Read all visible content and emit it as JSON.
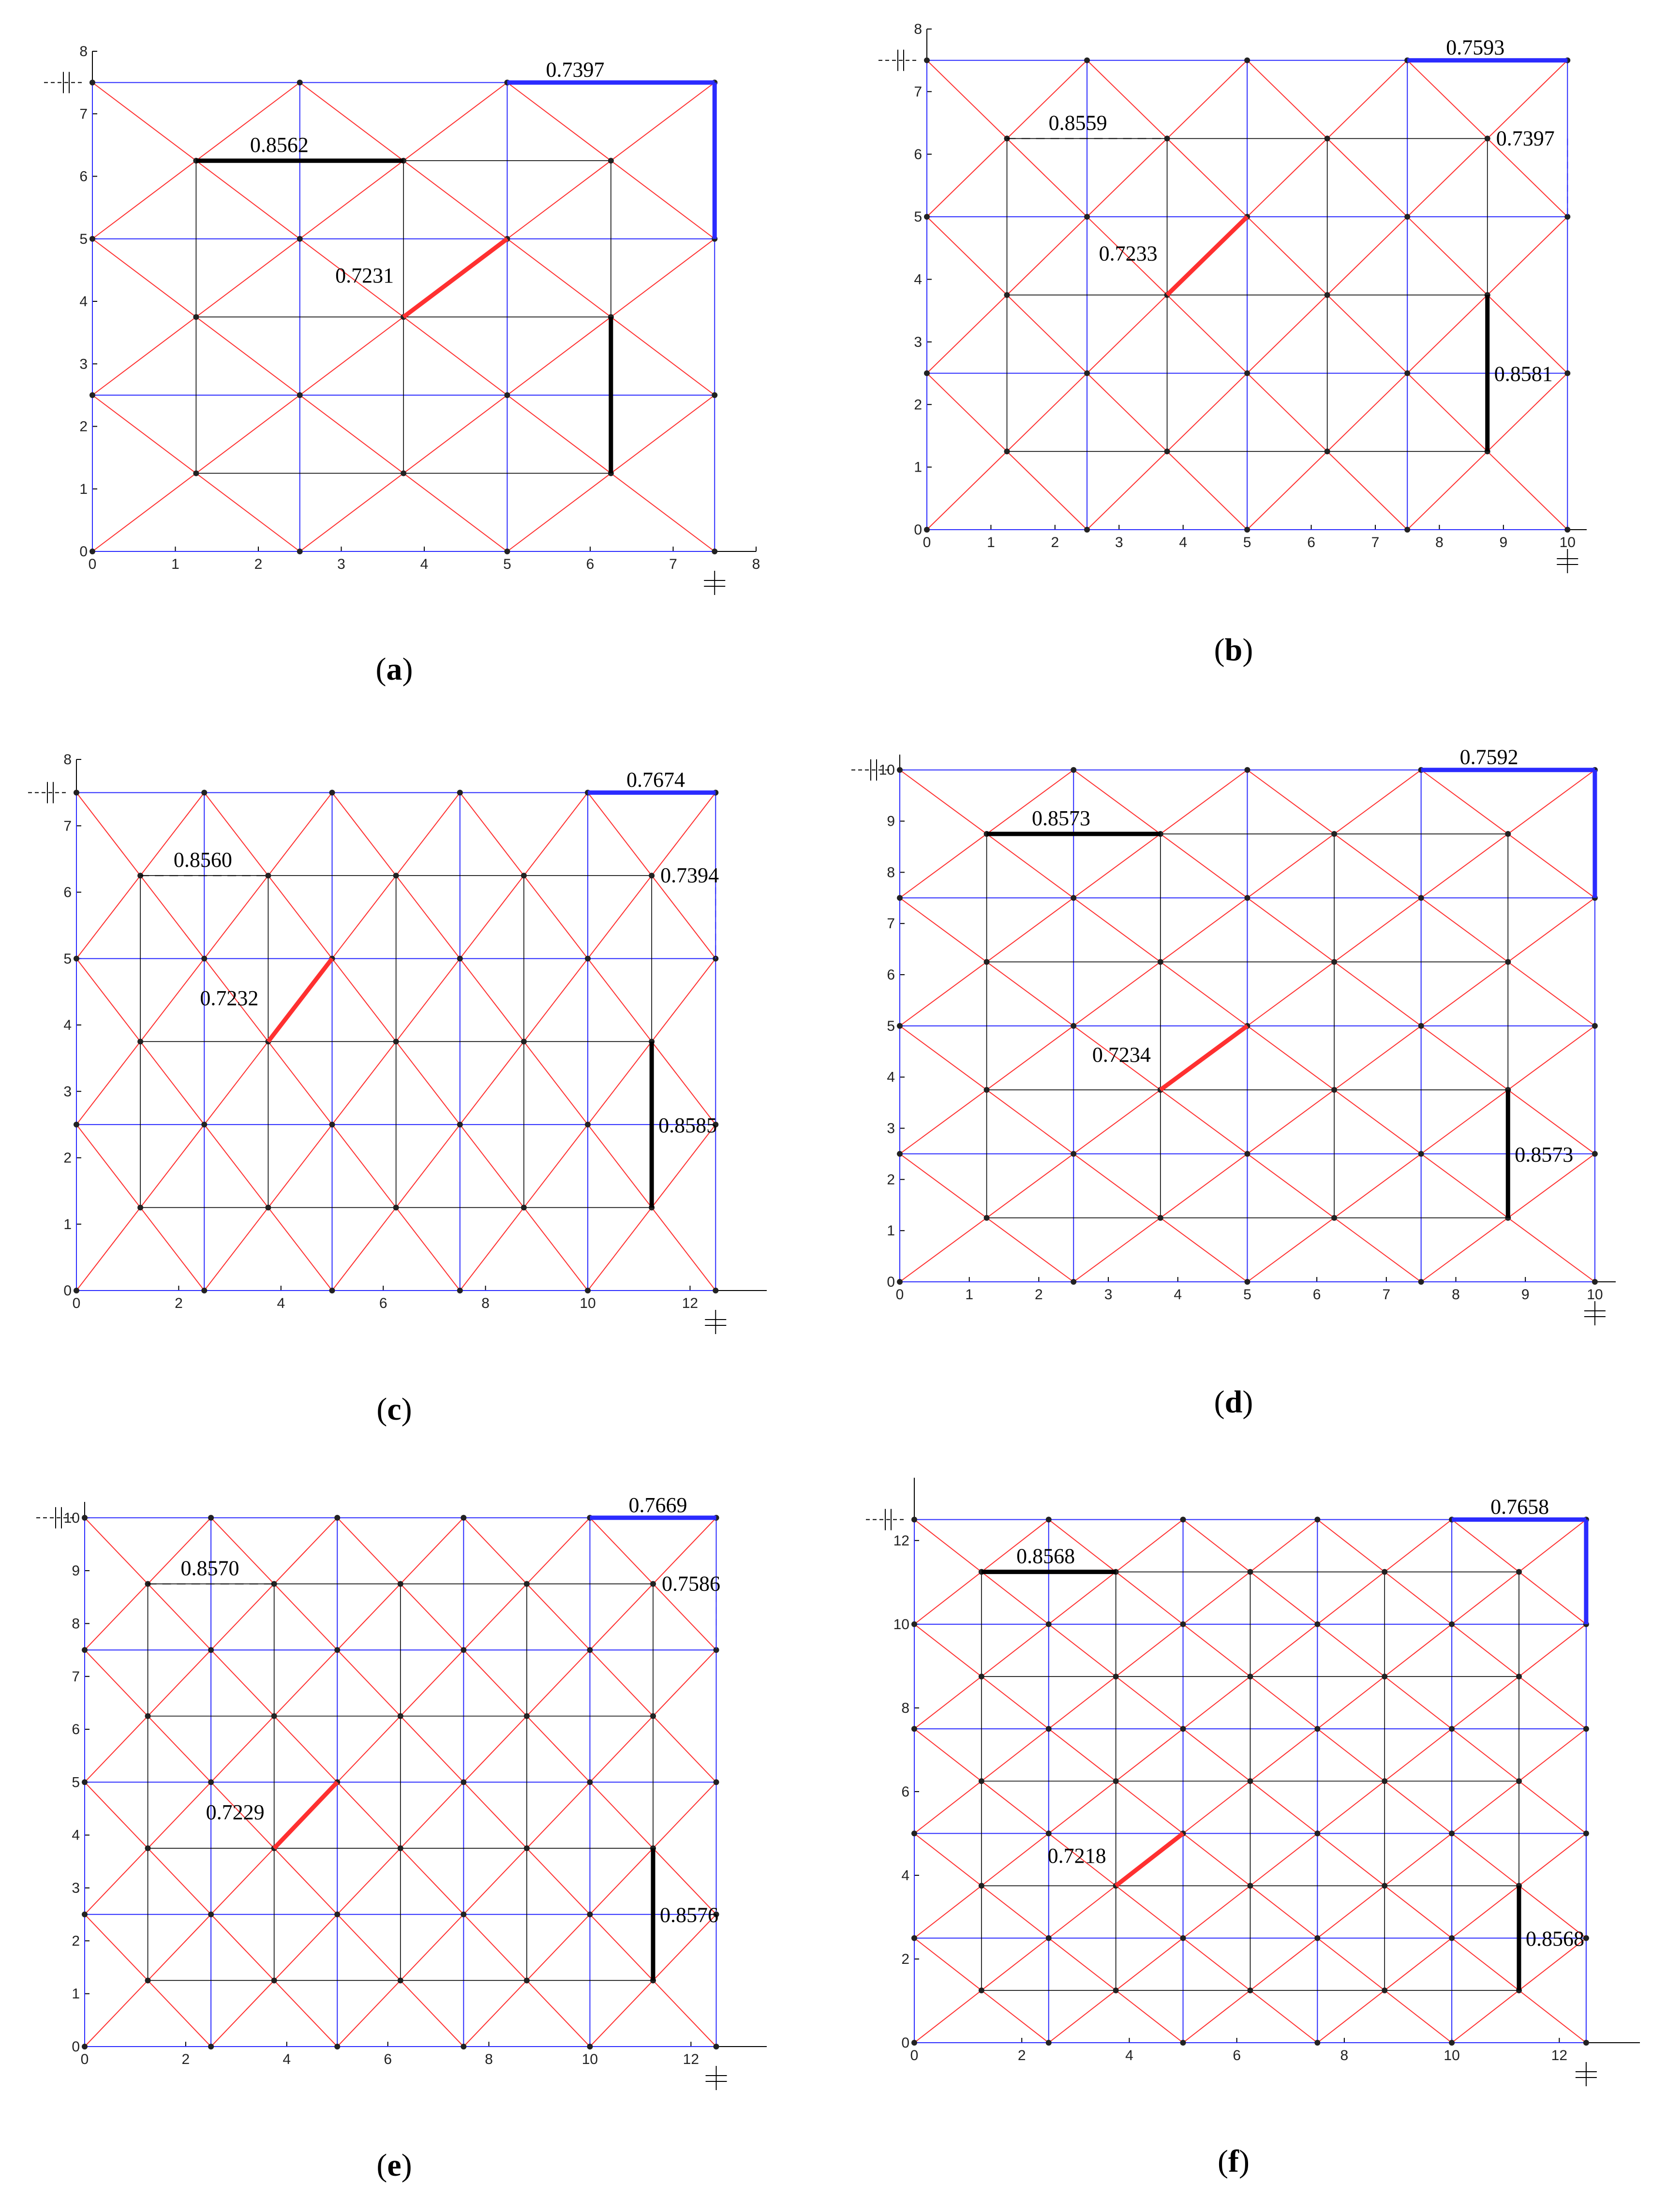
{
  "figure": {
    "panels": [
      {
        "id": "a",
        "caption": "(a)",
        "caption_letter": "a",
        "width": 7.5,
        "height": 7.5,
        "xmax": 8,
        "ymax": 8,
        "xticks": [
          "0",
          "1",
          "2",
          "3",
          "4",
          "5",
          "6",
          "7",
          "8"
        ],
        "yticks": [
          "0",
          "1",
          "2",
          "3",
          "4",
          "5",
          "6",
          "7",
          "8"
        ],
        "xtick_values": [
          0,
          1,
          2,
          3,
          4,
          5,
          6,
          7,
          8
        ],
        "ytick_values": [
          0,
          1,
          2,
          3,
          4,
          5,
          6,
          7,
          8
        ],
        "labels": {
          "blue": "0.7397",
          "black_top": "0.8562",
          "red": "0.7231",
          "black_right": ""
        },
        "dashed_top": false,
        "dashed_right": false
      },
      {
        "id": "b",
        "caption": "(b)",
        "caption_letter": "b",
        "width": 10,
        "height": 7.5,
        "xmax": 10.3,
        "ymax": 8,
        "xticks": [
          "0",
          "1",
          "2",
          "3",
          "4",
          "5",
          "6",
          "7",
          "8",
          "9",
          "10"
        ],
        "yticks": [
          "0",
          "1",
          "2",
          "3",
          "4",
          "5",
          "6",
          "7",
          "8"
        ],
        "xtick_values": [
          0,
          1,
          2,
          3,
          4,
          5,
          6,
          7,
          8,
          9,
          10
        ],
        "ytick_values": [
          0,
          1,
          2,
          3,
          4,
          5,
          6,
          7,
          8
        ],
        "labels": {
          "blue": "0.7593",
          "black_top": "0.8559",
          "red": "0.7233",
          "black_right": "0.8581",
          "dashed_right_label": "0.7397"
        },
        "dashed_top": true,
        "dashed_right": true
      },
      {
        "id": "c",
        "caption": "(c)",
        "caption_letter": "c",
        "width": 12.5,
        "height": 7.5,
        "xmax": 13.5,
        "ymax": 8,
        "xticks": [
          "0",
          "2",
          "4",
          "6",
          "8",
          "10",
          "12"
        ],
        "yticks": [
          "0",
          "1",
          "2",
          "3",
          "4",
          "5",
          "6",
          "7",
          "8"
        ],
        "xtick_values": [
          0,
          2,
          4,
          6,
          8,
          10,
          12
        ],
        "ytick_values": [
          0,
          1,
          2,
          3,
          4,
          5,
          6,
          7,
          8
        ],
        "labels": {
          "blue": "0.7674",
          "black_top": "0.8560",
          "red": "0.7232",
          "black_right": "0.8585",
          "dashed_right_label": "0.7394"
        },
        "dashed_top": true,
        "dashed_right": true
      },
      {
        "id": "d",
        "caption": "(d)",
        "caption_letter": "d",
        "width": 10,
        "height": 10,
        "xmax": 10.3,
        "ymax": 10.3,
        "xticks": [
          "0",
          "1",
          "2",
          "3",
          "4",
          "5",
          "6",
          "7",
          "8",
          "9",
          "10"
        ],
        "yticks": [
          "0",
          "1",
          "2",
          "3",
          "4",
          "5",
          "6",
          "7",
          "8",
          "9",
          "10"
        ],
        "xtick_values": [
          0,
          1,
          2,
          3,
          4,
          5,
          6,
          7,
          8,
          9,
          10
        ],
        "ytick_values": [
          0,
          1,
          2,
          3,
          4,
          5,
          6,
          7,
          8,
          9,
          10
        ],
        "labels": {
          "blue": "0.7592",
          "black_top": "0.8573",
          "red": "0.7234",
          "black_right": "0.8573"
        },
        "dashed_top": false,
        "dashed_right": false
      },
      {
        "id": "e",
        "caption": "(e)",
        "caption_letter": "e",
        "width": 12.5,
        "height": 10,
        "xmax": 13.5,
        "ymax": 10.3,
        "xticks": [
          "0",
          "2",
          "4",
          "6",
          "8",
          "10",
          "12"
        ],
        "yticks": [
          "0",
          "1",
          "2",
          "3",
          "4",
          "5",
          "6",
          "7",
          "8",
          "9",
          "10"
        ],
        "xtick_values": [
          0,
          2,
          4,
          6,
          8,
          10,
          12
        ],
        "ytick_values": [
          0,
          1,
          2,
          3,
          4,
          5,
          6,
          7,
          8,
          9,
          10
        ],
        "labels": {
          "blue": "0.7669",
          "black_top": "0.8570",
          "red": "0.7229",
          "black_right": "0.8576",
          "dashed_right_label": "0.7586"
        },
        "dashed_top": true,
        "dashed_right": true
      },
      {
        "id": "f",
        "caption": "(f)",
        "caption_letter": "f",
        "width": 12.5,
        "height": 12.5,
        "xmax": 13.5,
        "ymax": 13.5,
        "xticks": [
          "0",
          "2",
          "4",
          "6",
          "8",
          "10",
          "12"
        ],
        "yticks": [
          "0",
          "2",
          "4",
          "6",
          "8",
          "10",
          "12"
        ],
        "xtick_values": [
          0,
          2,
          4,
          6,
          8,
          10,
          12
        ],
        "ytick_values": [
          0,
          2,
          4,
          6,
          8,
          10,
          12
        ],
        "labels": {
          "blue": "0.7658",
          "black_top": "0.8568",
          "red": "0.7218",
          "black_right": "0.8568"
        },
        "dashed_top": false,
        "dashed_right": false
      }
    ],
    "colors": {
      "blue": "#2b2bff",
      "red": "#ff3030",
      "black": "#000000",
      "axis": "#000000"
    }
  }
}
